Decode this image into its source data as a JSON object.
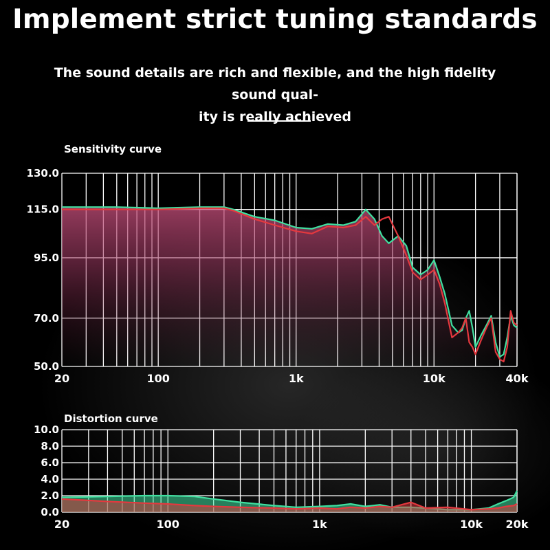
{
  "header": {
    "title": "Implement strict tuning standards",
    "subtitle_line1": "The sound details are rich and flexible, and the high fidelity sound qual-",
    "subtitle_line2": "ity is really achieved"
  },
  "colors": {
    "green": "#3fe0a0",
    "red": "#e5383e",
    "grid": "#ffffff"
  },
  "chart_data": [
    {
      "type": "line",
      "title": "Sensitivity curve",
      "xscale": "log",
      "xlim": [
        20,
        40000
      ],
      "ylim": [
        50,
        130
      ],
      "x_tick_labels": [
        "20",
        "100",
        "1k",
        "10k",
        "40k"
      ],
      "x_tick_values": [
        20,
        100,
        1000,
        10000,
        40000
      ],
      "y_tick_labels": [
        "130.0",
        "115.0",
        "95.0",
        "70.0",
        "50.0"
      ],
      "y_tick_values": [
        130,
        115,
        95,
        70,
        50
      ],
      "grid": true,
      "series": [
        {
          "color": "#3fe0a0",
          "x": [
            20,
            50,
            100,
            200,
            300,
            350,
            500,
            700,
            1000,
            1300,
            1700,
            2200,
            2700,
            3200,
            3700,
            4200,
            4700,
            5500,
            6300,
            7000,
            8000,
            9000,
            10000,
            11000,
            12000,
            13500,
            15000,
            16000,
            17000,
            18000,
            19000,
            20000,
            22000,
            24000,
            26000,
            28000,
            30000,
            32000,
            34000,
            36000,
            38000,
            40000
          ],
          "y": [
            116,
            116,
            115.5,
            116,
            116,
            115,
            112,
            110.5,
            107.5,
            107,
            109,
            108.5,
            110,
            115,
            111,
            104,
            101,
            104,
            100,
            91,
            88,
            90,
            94,
            87,
            80,
            67,
            64,
            65,
            70,
            73,
            66,
            58,
            63,
            67,
            71,
            60,
            54,
            55,
            62,
            71,
            67,
            66
          ]
        },
        {
          "color": "#e5383e",
          "x": [
            20,
            50,
            100,
            200,
            300,
            350,
            500,
            700,
            1000,
            1300,
            1700,
            2200,
            2700,
            3200,
            3700,
            4200,
            4700,
            5500,
            6300,
            7000,
            8000,
            9000,
            10000,
            11000,
            12000,
            13500,
            15000,
            16000,
            17000,
            18000,
            19000,
            20000,
            22000,
            24000,
            26000,
            28000,
            30000,
            32000,
            34000,
            36000,
            38000,
            40000
          ],
          "y": [
            115,
            115,
            115,
            115.5,
            115.5,
            114.5,
            111,
            108.5,
            106,
            105,
            108,
            107.5,
            108.5,
            112,
            108.5,
            111,
            112,
            104,
            96,
            89,
            86,
            88,
            90,
            84,
            76,
            62,
            64,
            66,
            70,
            60,
            58,
            55,
            61,
            66,
            70,
            56,
            53,
            52,
            58,
            73,
            68,
            67
          ]
        }
      ]
    },
    {
      "type": "area",
      "title": "Distortion curve",
      "xscale": "log",
      "xlim": [
        20,
        20000
      ],
      "ylim": [
        0,
        10
      ],
      "x_tick_labels": [
        "20",
        "100",
        "1k",
        "10k",
        "20k"
      ],
      "x_tick_values": [
        20,
        100,
        1000,
        10000,
        20000
      ],
      "y_tick_labels": [
        "10.0",
        "8.0",
        "6.0",
        "4.0",
        "2.0",
        "0.0"
      ],
      "y_tick_values": [
        10,
        8,
        6,
        4,
        2,
        0
      ],
      "grid": true,
      "series": [
        {
          "color": "#3fe0a0",
          "x": [
            20,
            40,
            70,
            100,
            150,
            200,
            300,
            500,
            700,
            1000,
            1300,
            1600,
            2000,
            2500,
            3000,
            4000,
            5000,
            7000,
            10000,
            13000,
            15000,
            17000,
            19000,
            20000
          ],
          "y": [
            1.8,
            1.9,
            2.0,
            2.0,
            1.9,
            1.6,
            1.2,
            0.8,
            0.6,
            0.7,
            0.8,
            1.0,
            0.7,
            0.9,
            0.6,
            0.6,
            0.5,
            0.3,
            0.3,
            0.5,
            1.0,
            1.4,
            1.8,
            2.6
          ]
        },
        {
          "color": "#e5383e",
          "x": [
            20,
            40,
            70,
            100,
            150,
            200,
            300,
            500,
            700,
            1000,
            1300,
            1600,
            2000,
            2500,
            3000,
            4000,
            5000,
            7000,
            10000,
            13000,
            15000,
            17000,
            19000,
            20000
          ],
          "y": [
            1.6,
            1.3,
            1.1,
            1.0,
            0.8,
            0.7,
            0.6,
            0.5,
            0.4,
            0.5,
            0.4,
            0.6,
            0.5,
            0.7,
            0.6,
            1.2,
            0.5,
            0.6,
            0.3,
            0.4,
            0.5,
            0.7,
            0.8,
            1.0
          ]
        }
      ]
    }
  ]
}
